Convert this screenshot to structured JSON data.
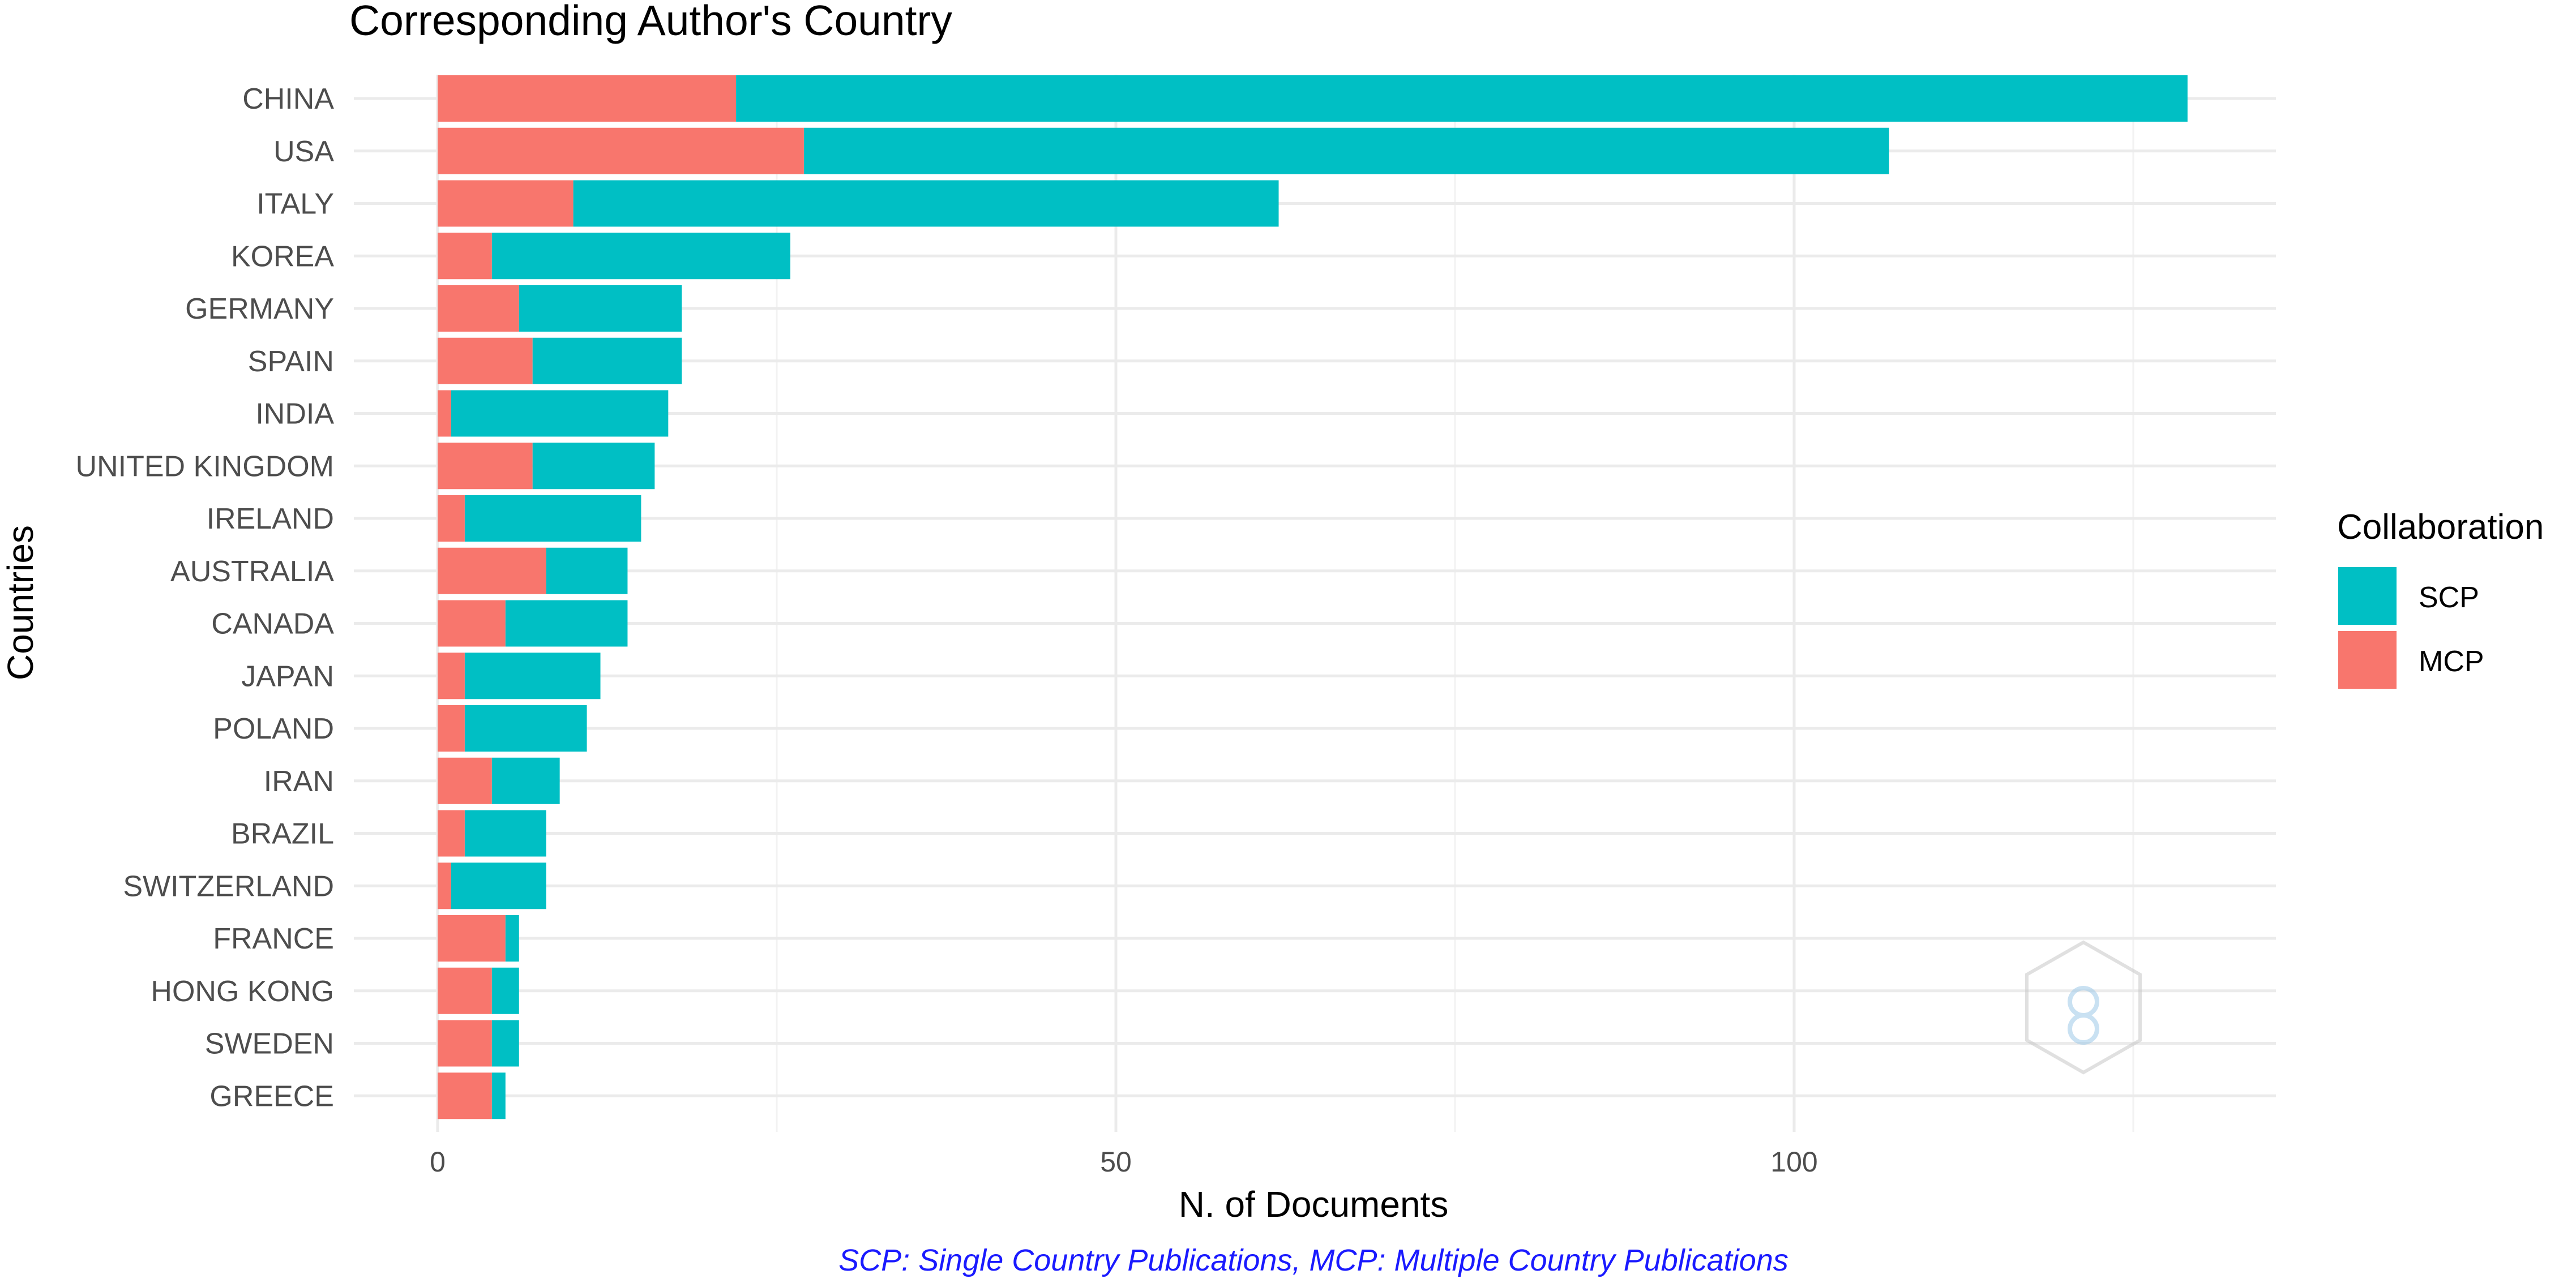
{
  "chart_data": {
    "type": "bar",
    "orientation": "horizontal",
    "stacked": true,
    "title": "Corresponding Author's Country",
    "xlabel": "N. of Documents",
    "ylabel": "Countries",
    "caption": "SCP: Single Country Publications, MCP: Multiple Country Publications",
    "xlim": [
      0,
      135
    ],
    "xticks": [
      0,
      50,
      100
    ],
    "grid": true,
    "legend_position": "right",
    "legend_title": "Collaboration",
    "categories": [
      "CHINA",
      "USA",
      "ITALY",
      "KOREA",
      "GERMANY",
      "SPAIN",
      "INDIA",
      "UNITED KINGDOM",
      "IRELAND",
      "AUSTRALIA",
      "CANADA",
      "JAPAN",
      "POLAND",
      "IRAN",
      "BRAZIL",
      "SWITZERLAND",
      "FRANCE",
      "HONG KONG",
      "SWEDEN",
      "GREECE"
    ],
    "series": [
      {
        "name": "MCP",
        "color": "#F8766D",
        "values": [
          22,
          27,
          10,
          4,
          6,
          7,
          1,
          7,
          2,
          8,
          5,
          2,
          2,
          4,
          2,
          1,
          5,
          4,
          4,
          4
        ]
      },
      {
        "name": "SCP",
        "color": "#00BFC4",
        "values": [
          107,
          80,
          52,
          22,
          12,
          11,
          16,
          9,
          13,
          6,
          9,
          10,
          9,
          5,
          6,
          7,
          1,
          2,
          2,
          1
        ]
      }
    ]
  }
}
